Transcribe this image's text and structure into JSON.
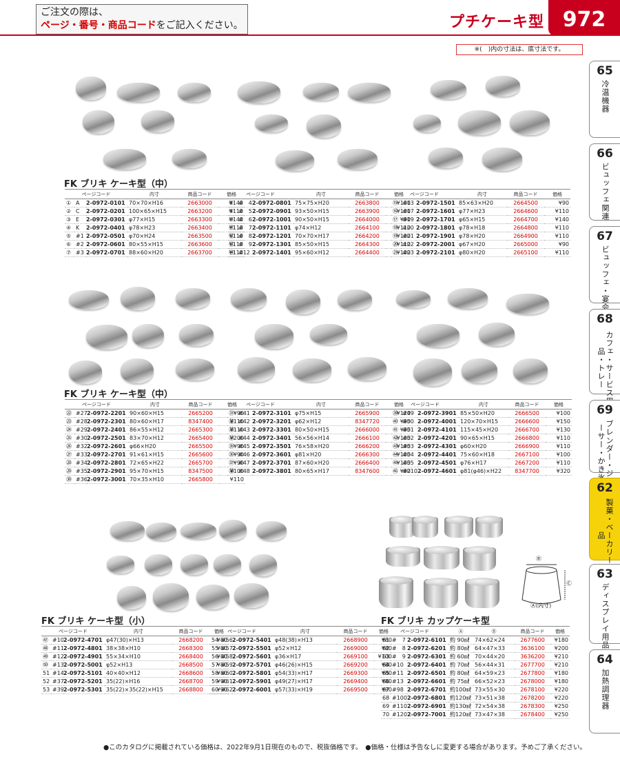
{
  "header": {
    "order_line1": "ご注文の際は、",
    "order_line2_red": "ページ・番号・商品コード",
    "order_line2_rest": "をご記入ください。",
    "title": "プチケーキ型",
    "page_number": "972"
  },
  "note": "※(　)内の寸法は、底寸法です。",
  "side_tabs": [
    {
      "num": "65",
      "label": "冷温機器",
      "active": false
    },
    {
      "num": "66",
      "label": "ビュッフェ関連",
      "active": false
    },
    {
      "num": "67",
      "label": "ビュッフェ・宴会",
      "active": false
    },
    {
      "num": "68",
      "label": "カフェ・サービス用品・トレー",
      "active": false
    },
    {
      "num": "69",
      "label": "ブレンダー・ジューサー・かき氷",
      "active": false
    },
    {
      "num": "62",
      "label": "製菓・ベーカリー用品",
      "active": true
    },
    {
      "num": "63",
      "label": "ディスプレイ用品",
      "active": false
    },
    {
      "num": "64",
      "label": "加熱調理器",
      "active": false
    }
  ],
  "sections": {
    "s1_title": "FK ブリキ ケーキ型（中）",
    "s2_title": "FK ブリキ ケーキ型（中）",
    "s3_title": "FK ブリキ ケーキ型（小）",
    "s4_title": "FK ブリキ カップケーキ型"
  },
  "headers": {
    "std": [
      "ページコード",
      "内寸",
      "商品コード",
      "価格"
    ],
    "cup": [
      "ページコード",
      "Ⓐ",
      "Ⓑ",
      "Ⓒ",
      "商品コード",
      "価格"
    ]
  },
  "tables": {
    "t1a": [
      [
        "①",
        "A",
        "2-0972-0101",
        "70×70×H16",
        "2663000",
        "¥140"
      ],
      [
        "②",
        "C",
        "2-0972-0201",
        "100×65×H15",
        "2663200",
        "¥110"
      ],
      [
        "③",
        "E",
        "2-0972-0301",
        "φ77×H15",
        "2663300",
        "¥140"
      ],
      [
        "④",
        "K",
        "2-0972-0401",
        "φ78×H23",
        "2663400",
        "¥110"
      ],
      [
        "⑤",
        "#1",
        "2-0972-0501",
        "φ70×H24",
        "2663500",
        "¥110"
      ],
      [
        "⑥",
        "#2",
        "2-0972-0601",
        "80×55×H15",
        "2663600",
        "¥110"
      ],
      [
        "⑦",
        "#3",
        "2-0972-0701",
        "88×60×H20",
        "2663700",
        "¥110"
      ]
    ],
    "t1b": [
      [
        "⑧",
        "#　4",
        "2-0972-0801",
        "75×75×H20",
        "2663800",
        "¥100"
      ],
      [
        "⑨",
        "#　5",
        "2-0972-0901",
        "93×50×H15",
        "2663900",
        "¥100"
      ],
      [
        "⑩",
        "#　6",
        "2-0972-1001",
        "90×50×H15",
        "2664000",
        "¥90"
      ],
      [
        "⑪",
        "#　7",
        "2-0972-1101",
        "φ74×H12",
        "2664100",
        "¥110"
      ],
      [
        "⑫",
        "#　8",
        "2-0972-1201",
        "70×70×H17",
        "2664200",
        "¥100"
      ],
      [
        "⑬",
        "#　9",
        "2-0972-1301",
        "85×50×H15",
        "2664300",
        "¥110"
      ],
      [
        "⑭",
        "#12",
        "2-0972-1401",
        "95×60×H12",
        "2664400",
        "¥100"
      ]
    ],
    "t1c": [
      [
        "⑮",
        "#13",
        "2-0972-1501",
        "85×63×H20",
        "2664500",
        "¥90"
      ],
      [
        "⑯",
        "#17",
        "2-0972-1601",
        "φ77×H23",
        "2664600",
        "¥110"
      ],
      [
        "⑰",
        "#19",
        "2-0972-1701",
        "φ65×H15",
        "2664700",
        "¥140"
      ],
      [
        "⑱",
        "#20",
        "2-0972-1801",
        "φ78×H18",
        "2664800",
        "¥110"
      ],
      [
        "⑲",
        "#21",
        "2-0972-1901",
        "φ78×H20",
        "2664900",
        "¥110"
      ],
      [
        "⑳",
        "#22",
        "2-0972-2001",
        "φ67×H20",
        "2665000",
        "¥90"
      ],
      [
        "㉑",
        "#23",
        "2-0972-2101",
        "φ80×H20",
        "2665100",
        "¥110"
      ]
    ],
    "t2a": [
      [
        "㉒",
        "#27",
        "2-0972-2201",
        "90×60×H15",
        "2665200",
        "¥90"
      ],
      [
        "㉓",
        "#28",
        "2-0972-2301",
        "80×60×H17",
        "8347400",
        "¥110"
      ],
      [
        "㉔",
        "#29",
        "2-0972-2401",
        "86×55×H12",
        "2665300",
        "¥110"
      ],
      [
        "㉕",
        "#30",
        "2-0972-2501",
        "83×70×H12",
        "2665400",
        "¥200"
      ],
      [
        "㉖",
        "#32",
        "2-0972-2601",
        "φ66×H20",
        "2665500",
        "¥90"
      ],
      [
        "㉗",
        "#33",
        "2-0972-2701",
        "91×61×H15",
        "2665600",
        "¥90"
      ],
      [
        "㉘",
        "#34",
        "2-0972-2801",
        "72×65×H22",
        "2665700",
        "¥90"
      ],
      [
        "㉙",
        "#35",
        "2-0972-2901",
        "95×70×H15",
        "8347500",
        "¥100"
      ],
      [
        "㉚",
        "#36",
        "2-0972-3001",
        "70×35×H10",
        "2665800",
        "¥110"
      ]
    ],
    "t2b": [
      [
        "㉛",
        "#41",
        "2-0972-3101",
        "φ75×H15",
        "2665900",
        "¥120"
      ],
      [
        "㉜",
        "#42",
        "2-0972-3201",
        "φ62×H12",
        "8347720",
        "¥90"
      ],
      [
        "㉝",
        "#43",
        "2-0972-3301",
        "80×50×H15",
        "2666000",
        "¥90"
      ],
      [
        "㉞",
        "#44",
        "2-0972-3401",
        "56×56×H14",
        "2666100",
        "¥100"
      ],
      [
        "㉟",
        "#45",
        "2-0972-3501",
        "76×58×H20",
        "2666200",
        "¥190"
      ],
      [
        "㊱",
        "#46",
        "2-0972-3601",
        "φ81×H20",
        "2666300",
        "¥100"
      ],
      [
        "㊲",
        "#47",
        "2-0972-3701",
        "87×60×H20",
        "2666400",
        "¥100"
      ],
      [
        "㊳",
        "#48",
        "2-0972-3801",
        "80×65×H17",
        "8347600",
        "¥90"
      ]
    ],
    "t2c": [
      [
        "㊴",
        "#49",
        "2-0972-3901",
        "85×50×H20",
        "2666500",
        "¥100"
      ],
      [
        "㊵",
        "#50",
        "2-0972-4001",
        "120×70×H15",
        "2666600",
        "¥150"
      ],
      [
        "㊶",
        "#51",
        "2-0972-4101",
        "115×45×H20",
        "2666700",
        "¥130"
      ],
      [
        "㊷",
        "#52",
        "2-0972-4201",
        "90×65×H15",
        "2666800",
        "¥110"
      ],
      [
        "㊸",
        "#53",
        "2-0972-4301",
        "φ60×H20",
        "2666900",
        "¥110"
      ],
      [
        "㊹",
        "#54",
        "2-0972-4401",
        "75×60×H18",
        "2667100",
        "¥100"
      ],
      [
        "㊺",
        "#55",
        "2-0972-4501",
        "φ76×H17",
        "2667200",
        "¥110"
      ],
      [
        "㊻",
        "#210",
        "2-0972-4601",
        "φ81(φ46)×H22",
        "8347700",
        "¥320"
      ]
    ],
    "t3a": [
      [
        "㊼",
        "#10",
        "2-0972-4701",
        "φ47(30)×H13",
        "2668200",
        "¥80"
      ],
      [
        "㊽",
        "#11",
        "2-0972-4801",
        "38×38×H10",
        "2668300",
        "¥80"
      ],
      [
        "㊾",
        "#12",
        "2-0972-4901",
        "55×34×H10",
        "2668400",
        "¥80"
      ],
      [
        "㊿",
        "#13",
        "2-0972-5001",
        "φ52×H13",
        "2668500",
        "¥80"
      ],
      [
        "51",
        "#14",
        "2-0972-5101",
        "40×40×H12",
        "2668600",
        "¥80"
      ],
      [
        "52",
        "#37",
        "2-0972-5201",
        "35(22)×H16",
        "2668700",
        "¥90"
      ],
      [
        "53",
        "#39",
        "2-0972-5301",
        "35(22)×35(22)×H15",
        "2668800",
        "¥90"
      ]
    ],
    "t3b": [
      [
        "54",
        "#56",
        "2-0972-5401",
        "φ48(38)×H13",
        "2668900",
        "¥80"
      ],
      [
        "55",
        "#57",
        "2-0972-5501",
        "φ52×H12",
        "2669000",
        "¥80"
      ],
      [
        "56",
        "#58",
        "2-0972-5601",
        "φ36×H17",
        "2669100",
        "¥100"
      ],
      [
        "57",
        "#59",
        "2-0972-5701",
        "φ46(26)×H15",
        "2669200",
        "¥80"
      ],
      [
        "58",
        "#60",
        "2-0972-5801",
        "φ54(33)×H17",
        "2669300",
        "¥80"
      ],
      [
        "59",
        "#61",
        "2-0972-5901",
        "φ49(27)×H17",
        "2669400",
        "¥80"
      ],
      [
        "60",
        "#62",
        "2-0972-6001",
        "φ57(33)×H19",
        "2669500",
        "¥90"
      ]
    ],
    "t4": [
      [
        "61",
        "#　7",
        "2-0972-6101",
        "約 90㎖",
        "74×62×24",
        "2677600",
        "¥180"
      ],
      [
        "62",
        "#　8",
        "2-0972-6201",
        "約 80㎖",
        "64×47×33",
        "3636100",
        "¥200"
      ],
      [
        "63",
        "#　9",
        "2-0972-6301",
        "約 60㎖",
        "70×44×20",
        "3636200",
        "¥210"
      ],
      [
        "64",
        "#10",
        "2-0972-6401",
        "約 70㎖",
        "56×44×31",
        "2677700",
        "¥210"
      ],
      [
        "65",
        "#11",
        "2-0972-6501",
        "約 80㎖",
        "64×59×23",
        "2677800",
        "¥180"
      ],
      [
        "66",
        "#13",
        "2-0972-6601",
        "約 75㎖",
        "66×52×23",
        "2678000",
        "¥180"
      ],
      [
        "67",
        "#98",
        "2-0972-6701",
        "約100㎖",
        "73×55×30",
        "2678100",
        "¥220"
      ],
      [
        "68",
        "#100",
        "2-0972-6801",
        "約120㎖",
        "73×51×38",
        "2678200",
        "¥220"
      ],
      [
        "69",
        "#110",
        "2-0972-6901",
        "約130㎖",
        "72×54×38",
        "2678300",
        "¥250"
      ],
      [
        "70",
        "#120",
        "2-0972-7001",
        "約120㎖",
        "73×47×38",
        "2678400",
        "¥250"
      ]
    ]
  },
  "diagram": {
    "a": "Ⓐ(内寸)",
    "b": "Ⓑ",
    "c": "Ⓒ"
  },
  "footer": "●このカタログに掲載されている価格は、2022年9月1日現在のもので、税抜価格です。　●価格・仕様は予告なしに変更する場合があります。予めご了承ください。"
}
